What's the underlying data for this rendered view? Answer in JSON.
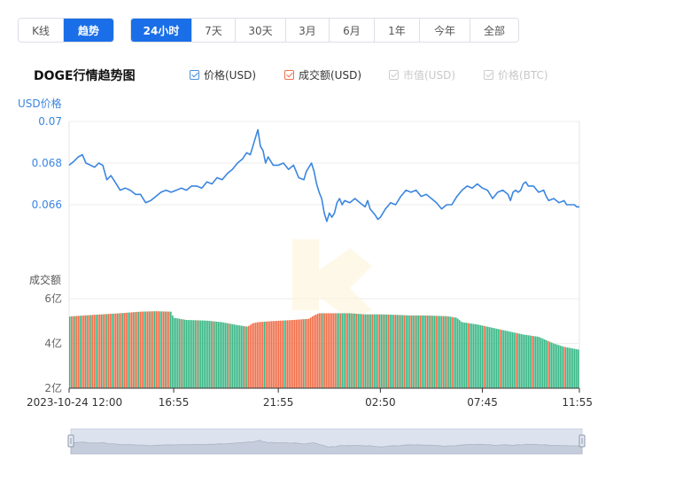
{
  "controls": {
    "type_buttons": [
      {
        "label": "K线",
        "active": false
      },
      {
        "label": "趋势",
        "active": true
      }
    ],
    "range_buttons": [
      {
        "label": "24小时",
        "active": true
      },
      {
        "label": "7天",
        "active": false
      },
      {
        "label": "30天",
        "active": false
      },
      {
        "label": "3月",
        "active": false
      },
      {
        "label": "6月",
        "active": false
      },
      {
        "label": "1年",
        "active": false
      },
      {
        "label": "今年",
        "active": false
      },
      {
        "label": "全部",
        "active": false
      }
    ]
  },
  "legend": [
    {
      "label": "价格(USD)",
      "checked": true,
      "enabled": true,
      "color": "#4a90d9"
    },
    {
      "label": "成交额(USD)",
      "checked": true,
      "enabled": true,
      "color": "#f06f4a"
    },
    {
      "label": "市值(USD)",
      "checked": true,
      "enabled": false,
      "color": "#cccccc"
    },
    {
      "label": "价格(BTC)",
      "checked": true,
      "enabled": false,
      "color": "#cccccc"
    }
  ],
  "colors": {
    "price_line": "#3b86e0",
    "volume_up": "#f06f4a",
    "volume_down": "#3bb887",
    "axis_price": "#3b86e0",
    "accent": "#1a6fe8"
  },
  "chart_data": {
    "type": "line",
    "title": "DOGE行情趋势图",
    "price_axis_label": "USD价格",
    "volume_axis_label": "成交额",
    "price_ticks": [
      "0.07",
      "0.068",
      "0.066"
    ],
    "volume_ticks": [
      "6亿",
      "4亿",
      "2亿"
    ],
    "x_tick_labels": [
      "2023-10-24 12:00",
      "16:55",
      "21:55",
      "02:50",
      "07:45",
      "11:55"
    ],
    "price_ylim": [
      0.0643,
      0.07
    ],
    "volume_ylim": [
      2,
      6
    ],
    "price_points": [
      [
        0,
        0.0679
      ],
      [
        0.01,
        0.0681
      ],
      [
        0.018,
        0.0683
      ],
      [
        0.026,
        0.0684
      ],
      [
        0.033,
        0.068
      ],
      [
        0.042,
        0.0679
      ],
      [
        0.05,
        0.0678
      ],
      [
        0.058,
        0.068
      ],
      [
        0.066,
        0.0679
      ],
      [
        0.074,
        0.0672
      ],
      [
        0.082,
        0.0674
      ],
      [
        0.09,
        0.0671
      ],
      [
        0.1,
        0.0667
      ],
      [
        0.11,
        0.0668
      ],
      [
        0.12,
        0.0667
      ],
      [
        0.13,
        0.0665
      ],
      [
        0.14,
        0.0665
      ],
      [
        0.15,
        0.0661
      ],
      [
        0.16,
        0.0662
      ],
      [
        0.17,
        0.0664
      ],
      [
        0.18,
        0.0666
      ],
      [
        0.19,
        0.0667
      ],
      [
        0.2,
        0.0666
      ],
      [
        0.21,
        0.0667
      ],
      [
        0.22,
        0.0668
      ],
      [
        0.23,
        0.0667
      ],
      [
        0.24,
        0.0669
      ],
      [
        0.25,
        0.0669
      ],
      [
        0.26,
        0.0668
      ],
      [
        0.27,
        0.0671
      ],
      [
        0.28,
        0.067
      ],
      [
        0.29,
        0.0673
      ],
      [
        0.3,
        0.0672
      ],
      [
        0.31,
        0.0675
      ],
      [
        0.32,
        0.0677
      ],
      [
        0.33,
        0.068
      ],
      [
        0.34,
        0.0682
      ],
      [
        0.348,
        0.0685
      ],
      [
        0.355,
        0.0684
      ],
      [
        0.36,
        0.0688
      ],
      [
        0.365,
        0.0692
      ],
      [
        0.37,
        0.0696
      ],
      [
        0.375,
        0.0688
      ],
      [
        0.38,
        0.0686
      ],
      [
        0.385,
        0.068
      ],
      [
        0.39,
        0.0683
      ],
      [
        0.4,
        0.0679
      ],
      [
        0.41,
        0.0679
      ],
      [
        0.42,
        0.068
      ],
      [
        0.43,
        0.0677
      ],
      [
        0.44,
        0.0679
      ],
      [
        0.445,
        0.0676
      ],
      [
        0.45,
        0.0673
      ],
      [
        0.46,
        0.0672
      ],
      [
        0.465,
        0.0676
      ],
      [
        0.47,
        0.0678
      ],
      [
        0.475,
        0.068
      ],
      [
        0.48,
        0.0676
      ],
      [
        0.485,
        0.067
      ],
      [
        0.49,
        0.0666
      ],
      [
        0.495,
        0.0663
      ],
      [
        0.5,
        0.0656
      ],
      [
        0.505,
        0.0652
      ],
      [
        0.51,
        0.0656
      ],
      [
        0.515,
        0.0654
      ],
      [
        0.52,
        0.0656
      ],
      [
        0.525,
        0.0661
      ],
      [
        0.53,
        0.0663
      ],
      [
        0.535,
        0.066
      ],
      [
        0.54,
        0.0662
      ],
      [
        0.55,
        0.0661
      ],
      [
        0.56,
        0.0663
      ],
      [
        0.57,
        0.0661
      ],
      [
        0.58,
        0.0659
      ],
      [
        0.585,
        0.0662
      ],
      [
        0.59,
        0.0658
      ],
      [
        0.6,
        0.0655
      ],
      [
        0.605,
        0.0653
      ],
      [
        0.61,
        0.0654
      ],
      [
        0.62,
        0.0658
      ],
      [
        0.63,
        0.0661
      ],
      [
        0.64,
        0.066
      ],
      [
        0.65,
        0.0664
      ],
      [
        0.66,
        0.0667
      ],
      [
        0.67,
        0.0666
      ],
      [
        0.68,
        0.0667
      ],
      [
        0.69,
        0.0664
      ],
      [
        0.7,
        0.0665
      ],
      [
        0.71,
        0.0663
      ],
      [
        0.72,
        0.0661
      ],
      [
        0.73,
        0.0658
      ],
      [
        0.74,
        0.066
      ],
      [
        0.75,
        0.066
      ],
      [
        0.76,
        0.0664
      ],
      [
        0.77,
        0.0667
      ],
      [
        0.78,
        0.0669
      ],
      [
        0.79,
        0.0668
      ],
      [
        0.8,
        0.067
      ],
      [
        0.81,
        0.0668
      ],
      [
        0.82,
        0.0667
      ],
      [
        0.83,
        0.0663
      ],
      [
        0.84,
        0.0666
      ],
      [
        0.85,
        0.0667
      ],
      [
        0.86,
        0.0665
      ],
      [
        0.865,
        0.0662
      ],
      [
        0.87,
        0.0666
      ],
      [
        0.875,
        0.0667
      ],
      [
        0.88,
        0.0666
      ],
      [
        0.885,
        0.0667
      ],
      [
        0.89,
        0.067
      ],
      [
        0.895,
        0.0671
      ],
      [
        0.9,
        0.0669
      ],
      [
        0.91,
        0.0669
      ],
      [
        0.92,
        0.0666
      ],
      [
        0.93,
        0.0667
      ],
      [
        0.935,
        0.0664
      ],
      [
        0.94,
        0.0662
      ],
      [
        0.95,
        0.0663
      ],
      [
        0.96,
        0.0661
      ],
      [
        0.97,
        0.0662
      ],
      [
        0.975,
        0.066
      ],
      [
        0.98,
        0.066
      ],
      [
        0.99,
        0.066
      ],
      [
        0.995,
        0.0659
      ],
      [
        1,
        0.0659
      ]
    ],
    "volume_levels": [
      [
        0,
        5.2
      ],
      [
        0.01,
        5.22
      ],
      [
        0.05,
        5.28
      ],
      [
        0.1,
        5.35
      ],
      [
        0.14,
        5.42
      ],
      [
        0.17,
        5.44
      ],
      [
        0.2,
        5.42
      ],
      [
        0.205,
        5.15
      ],
      [
        0.23,
        5.05
      ],
      [
        0.27,
        5.02
      ],
      [
        0.3,
        4.95
      ],
      [
        0.33,
        4.82
      ],
      [
        0.35,
        4.75
      ],
      [
        0.36,
        4.9
      ],
      [
        0.37,
        4.95
      ],
      [
        0.4,
        5.0
      ],
      [
        0.44,
        5.05
      ],
      [
        0.47,
        5.1
      ],
      [
        0.48,
        5.25
      ],
      [
        0.49,
        5.35
      ],
      [
        0.52,
        5.35
      ],
      [
        0.55,
        5.35
      ],
      [
        0.58,
        5.3
      ],
      [
        0.61,
        5.3
      ],
      [
        0.64,
        5.28
      ],
      [
        0.67,
        5.25
      ],
      [
        0.7,
        5.25
      ],
      [
        0.74,
        5.22
      ],
      [
        0.76,
        5.15
      ],
      [
        0.77,
        4.95
      ],
      [
        0.8,
        4.85
      ],
      [
        0.83,
        4.7
      ],
      [
        0.86,
        4.55
      ],
      [
        0.89,
        4.4
      ],
      [
        0.92,
        4.3
      ],
      [
        0.95,
        4.0
      ],
      [
        0.97,
        3.85
      ],
      [
        1.0,
        3.72
      ]
    ],
    "volume_color_segments": [
      [
        0,
        0.2,
        "mixed_up"
      ],
      [
        0.2,
        0.35,
        "down"
      ],
      [
        0.35,
        0.48,
        "up"
      ],
      [
        0.48,
        0.52,
        "up"
      ],
      [
        0.52,
        0.76,
        "mixed"
      ],
      [
        0.76,
        1.0,
        "down"
      ]
    ],
    "grid": true,
    "slider_range": [
      0,
      1
    ]
  }
}
